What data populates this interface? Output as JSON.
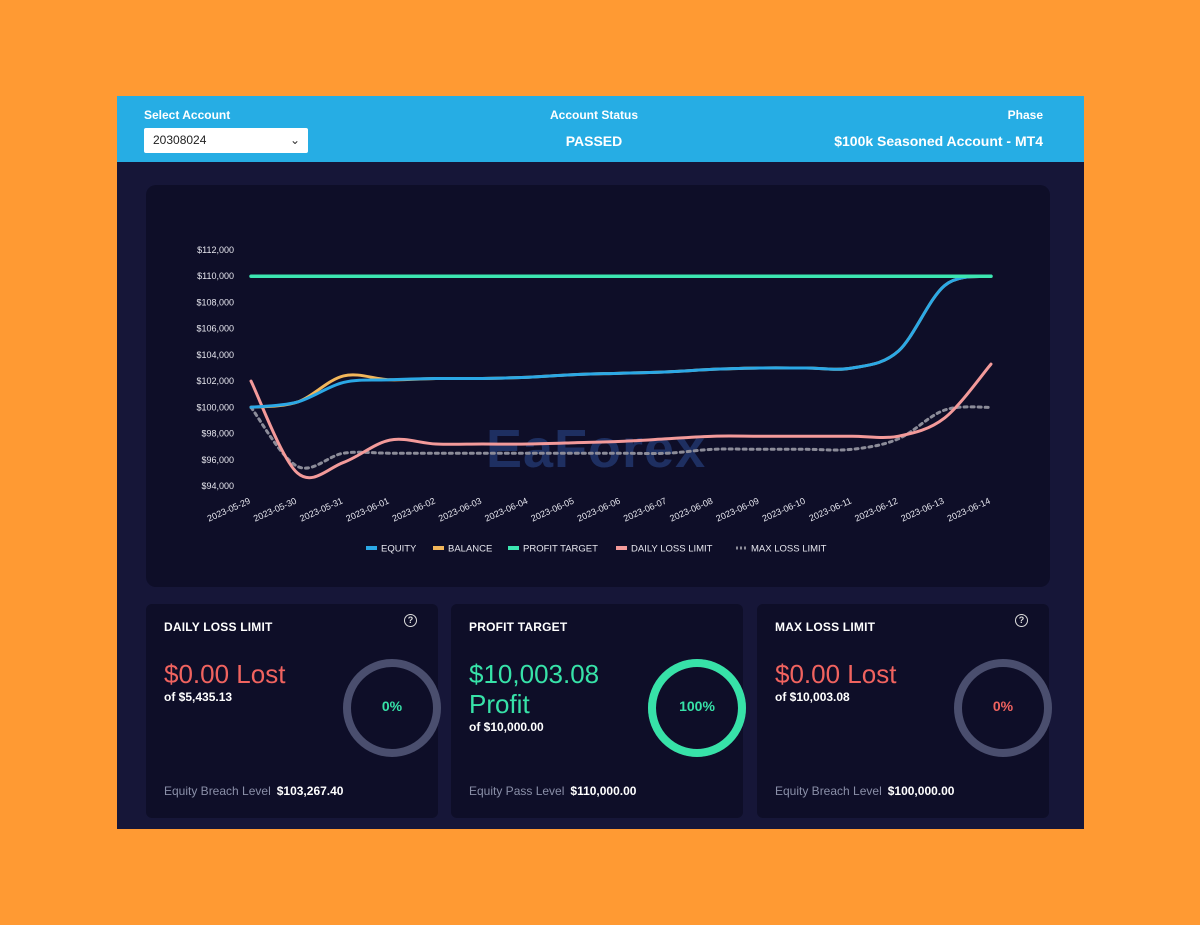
{
  "header": {
    "select_account_label": "Select Account",
    "account_value": "20308024",
    "account_status_label": "Account Status",
    "account_status_value": "PASSED",
    "phase_label": "Phase",
    "phase_value": "$100k Seasoned Account - MT4"
  },
  "watermark": "EaForex",
  "colors": {
    "equity": "#2BA8E6",
    "balance": "#F2B65A",
    "profit_target": "#3CE5B1",
    "daily_loss_limit": "#F39A9A",
    "max_loss_limit": "#8C8C99",
    "red": "#F0635F",
    "green": "#37E2A8",
    "ring_track": "#4A4E6E"
  },
  "chart_data": {
    "type": "line",
    "x": [
      "2023-05-29",
      "2023-05-30",
      "2023-05-31",
      "2023-06-01",
      "2023-06-02",
      "2023-06-03",
      "2023-06-04",
      "2023-06-05",
      "2023-06-06",
      "2023-06-07",
      "2023-06-08",
      "2023-06-09",
      "2023-06-10",
      "2023-06-11",
      "2023-06-12",
      "2023-06-13",
      "2023-06-14"
    ],
    "ylim": [
      94000,
      112000
    ],
    "yticks": [
      "$94,000",
      "$96,000",
      "$98,000",
      "$100,000",
      "$102,000",
      "$104,000",
      "$106,000",
      "$108,000",
      "$110,000",
      "$112,000"
    ],
    "legend_position": "bottom",
    "series": [
      {
        "name": "EQUITY",
        "key": "equity",
        "style": "solid",
        "values": [
          100000,
          100400,
          101900,
          102100,
          102200,
          102200,
          102300,
          102500,
          102600,
          102700,
          102900,
          103000,
          103000,
          103000,
          104300,
          109300,
          110000
        ]
      },
      {
        "name": "BALANCE",
        "key": "balance",
        "style": "solid",
        "values": [
          100000,
          100400,
          102400,
          102100,
          102200,
          102200,
          102300,
          102500,
          102600,
          102700,
          102900,
          103000,
          103000,
          103000,
          104300,
          109300,
          110000
        ]
      },
      {
        "name": "PROFIT TARGET",
        "key": "profit_target",
        "style": "solid",
        "values": [
          110000,
          110000,
          110000,
          110000,
          110000,
          110000,
          110000,
          110000,
          110000,
          110000,
          110000,
          110000,
          110000,
          110000,
          110000,
          110000,
          110000
        ]
      },
      {
        "name": "DAILY LOSS LIMIT",
        "key": "daily_loss_limit",
        "style": "solid",
        "values": [
          102000,
          95000,
          95800,
          97500,
          97200,
          97200,
          97200,
          97300,
          97400,
          97600,
          97800,
          97800,
          97800,
          97800,
          97800,
          99200,
          103300
        ]
      },
      {
        "name": "MAX LOSS LIMIT",
        "key": "max_loss_limit",
        "style": "dotted",
        "values": [
          100000,
          95500,
          96500,
          96500,
          96500,
          96500,
          96500,
          96500,
          96500,
          96500,
          96800,
          96800,
          96800,
          96800,
          97600,
          99800,
          100000
        ]
      }
    ]
  },
  "cards": [
    {
      "title": "DAILY LOSS LIMIT",
      "has_help": true,
      "help_icon": "question-circle-icon",
      "amount_lines": [
        "$0.00 Lost"
      ],
      "amount_tone": "red",
      "of_text": "of $5,435.13",
      "percent_value": 0,
      "percent_label": "0%",
      "footer_label": "Equity Breach Level",
      "footer_value": "$103,267.40"
    },
    {
      "title": "PROFIT TARGET",
      "has_help": false,
      "amount_lines": [
        "$10,003.08",
        "Profit"
      ],
      "amount_tone": "green",
      "of_text": "of $10,000.00",
      "percent_value": 100,
      "percent_label": "100%",
      "footer_label": "Equity Pass Level",
      "footer_value": "$110,000.00"
    },
    {
      "title": "MAX LOSS LIMIT",
      "has_help": true,
      "help_icon": "question-circle-icon",
      "amount_lines": [
        "$0.00 Lost"
      ],
      "amount_tone": "red",
      "of_text": "of $10,003.08",
      "percent_value": 0,
      "percent_label": "0%",
      "footer_label": "Equity Breach Level",
      "footer_value": "$100,000.00"
    }
  ]
}
